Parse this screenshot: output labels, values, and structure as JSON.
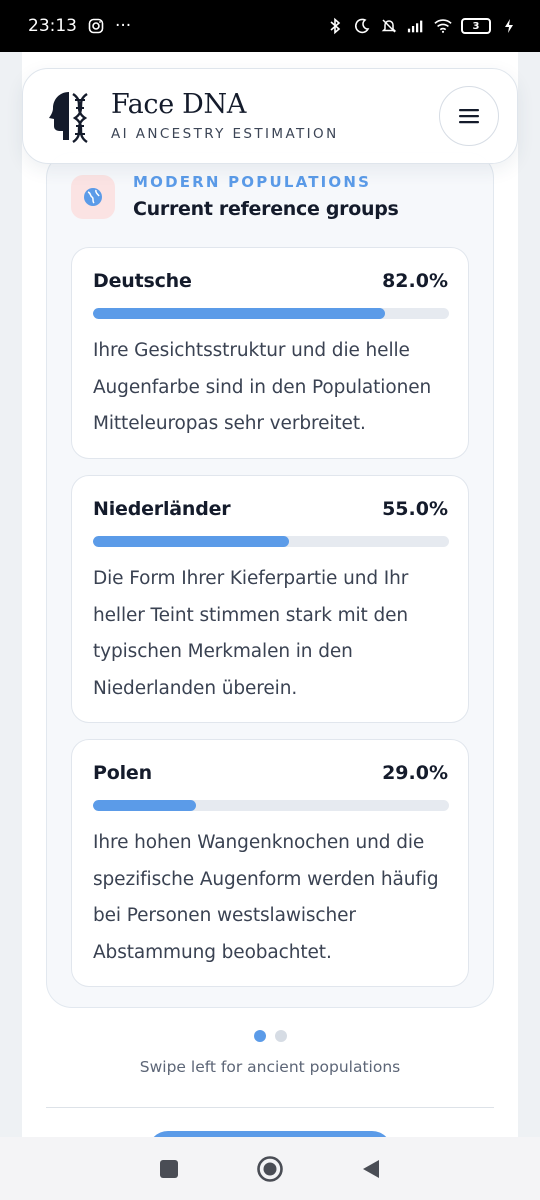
{
  "status_bar": {
    "time": "23:13",
    "overflow": "···",
    "battery_level": "3",
    "icons": [
      "instagram-icon",
      "bluetooth-icon",
      "moon-icon",
      "bell-off-icon",
      "signal-icon",
      "wifi-icon",
      "battery-icon",
      "charging-icon"
    ]
  },
  "header": {
    "brand": "Face DNA",
    "tagline": "AI ANCESTRY ESTIMATION",
    "logo_icon": "face-dna-logo",
    "menu_icon": "menu-icon"
  },
  "section": {
    "kicker": "MODERN POPULATIONS",
    "title": "Current reference groups",
    "icon": "globe-icon",
    "populations": [
      {
        "name": "Deutsche",
        "percent_label": "82.0%",
        "percent": 82.0,
        "description": "Ihre Gesichtsstruktur und die helle Augenfarbe sind in den Populationen Mitteleuropas sehr verbreitet."
      },
      {
        "name": "Niederländer",
        "percent_label": "55.0%",
        "percent": 55.0,
        "description": "Die Form Ihrer Kieferpartie und Ihr heller Teint stimmen stark mit den typischen Merkmalen in den Niederlanden überein."
      },
      {
        "name": "Polen",
        "percent_label": "29.0%",
        "percent": 29.0,
        "description": "Ihre hohen Wangenknochen und die spezifische Augenform werden häufig bei Personen westslawischer Abstammung beobachtet."
      }
    ]
  },
  "pager": {
    "pages": 2,
    "active": 0,
    "hint": "Swipe left for ancient populations"
  },
  "colors": {
    "accent": "#5b9be8",
    "text": "#141b2b",
    "muted": "#3a4252",
    "badge_bg": "#fbe3e3"
  },
  "nav": {
    "icons": [
      "recents-square-icon",
      "home-circle-icon",
      "back-triangle-icon"
    ]
  }
}
